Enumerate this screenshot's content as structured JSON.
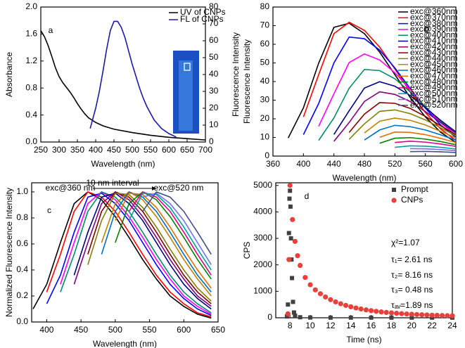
{
  "chart_data": [
    {
      "type": "line",
      "label": "a",
      "xlabel": "Wavelength (nm)",
      "ylabel": "Absorbance",
      "y2label": "Fluorescence Intensity",
      "xlim": [
        250,
        700
      ],
      "xticks": [
        250,
        300,
        350,
        400,
        450,
        500,
        550,
        600,
        650,
        700
      ],
      "ylim": [
        0,
        2
      ],
      "yticks": [
        {
          "value": 0,
          "label": "0.0"
        },
        0.4,
        0.8,
        1.2,
        1.6,
        {
          "value": 2,
          "label": "2.0"
        }
      ],
      "y2lim": [
        0,
        80
      ],
      "y2ticks": [
        0,
        10,
        20,
        30,
        40,
        50,
        60,
        70,
        80
      ],
      "legend": "upper right",
      "series": [
        {
          "name": "UV of CNPs",
          "color": "#000000",
          "x": [
            250,
            260,
            270,
            280,
            290,
            300,
            310,
            320,
            330,
            340,
            350,
            360,
            370,
            380,
            400,
            420,
            450,
            500,
            550,
            600,
            650,
            700
          ],
          "values": [
            1.65,
            1.56,
            1.43,
            1.27,
            1.1,
            0.97,
            0.88,
            0.81,
            0.74,
            0.66,
            0.57,
            0.49,
            0.42,
            0.36,
            0.29,
            0.24,
            0.19,
            0.14,
            0.1,
            0.07,
            0.05,
            0.03
          ]
        },
        {
          "name": "FL of CNPs",
          "color": "#1a1aa6",
          "axis": "y2",
          "x": [
            385,
            390,
            400,
            410,
            420,
            430,
            440,
            450,
            460,
            470,
            480,
            490,
            500,
            510,
            520,
            530,
            540,
            560,
            580,
            600,
            620
          ],
          "values": [
            8,
            12,
            20,
            30,
            42,
            55,
            66,
            71.5,
            71.5,
            68,
            62,
            54,
            46,
            39,
            32,
            26,
            21,
            13,
            8,
            5,
            3
          ]
        }
      ]
    },
    {
      "type": "line",
      "label": "b",
      "xlabel": "Wavelength (nm)",
      "ylabel": "Fluorescence Intensity",
      "xlim": [
        360,
        600
      ],
      "xticks": [
        360,
        400,
        440,
        480,
        520,
        560,
        600
      ],
      "ylim": [
        0,
        80
      ],
      "yticks": [
        0,
        10,
        20,
        30,
        40,
        50,
        60,
        70,
        80
      ],
      "legend": "upper right",
      "x": [
        380,
        400,
        420,
        440,
        460,
        480,
        500,
        520,
        540,
        560,
        580,
        600
      ],
      "series": [
        {
          "name": "exc@360nm",
          "color": "#000000",
          "values": [
            9.7,
            25.9,
            49.9,
            69.1,
            71.3,
            65.7,
            55.8,
            43.7,
            31.5,
            21.0,
            12.8,
            7.3
          ]
        },
        {
          "name": "exc@370nm",
          "color": "#ff0000",
          "values": [
            null,
            21.0,
            43.7,
            65.7,
            71.8,
            67.5,
            58.5,
            46.8,
            34.5,
            23.4,
            14.6,
            8.4
          ]
        },
        {
          "name": "exc@380nm",
          "color": "#0000ff",
          "values": [
            null,
            11.5,
            28.2,
            50.0,
            63.9,
            63.0,
            56.9,
            47.3,
            36.3,
            25.7,
            16.7,
            10.1
          ]
        },
        {
          "name": "exc@390nm",
          "color": "#ff00ff",
          "values": [
            null,
            null,
            16.0,
            33.4,
            50.2,
            54.8,
            51.6,
            44.7,
            35.8,
            26.3,
            17.9,
            11.2
          ]
        },
        {
          "name": "exc@400nm",
          "color": "#008c6e",
          "values": [
            null,
            null,
            8.4,
            20.5,
            36.4,
            46.5,
            45.9,
            41.5,
            34.5,
            26.5,
            18.7,
            12.2
          ]
        },
        {
          "name": "exc@410nm",
          "color": "#000080",
          "values": [
            null,
            null,
            null,
            11.6,
            24.3,
            36.5,
            39.9,
            37.5,
            32.5,
            26.0,
            19.2,
            13.0
          ]
        },
        {
          "name": "exc@420nm",
          "color": "#800080",
          "values": [
            null,
            null,
            null,
            7.9,
            18.0,
            29.3,
            34.5,
            33.1,
            29.3,
            23.9,
            18.0,
            12.4
          ]
        },
        {
          "name": "exc@430nm",
          "color": "#800000",
          "values": [
            null,
            null,
            null,
            null,
            12.7,
            22.5,
            28.7,
            28.3,
            25.6,
            21.3,
            16.3,
            11.5
          ]
        },
        {
          "name": "exc@440nm",
          "color": "#808000",
          "values": [
            null,
            null,
            null,
            null,
            9.0,
            17.3,
            24.0,
            24.8,
            22.8,
            19.4,
            15.2,
            10.9
          ]
        },
        {
          "name": "exc@450nm",
          "color": "#c08000",
          "values": [
            null,
            null,
            null,
            null,
            null,
            12.4,
            18.7,
            20.4,
            19.2,
            16.7,
            13.3,
            9.8
          ]
        },
        {
          "name": "exc@460nm",
          "color": "#0070c0",
          "values": [
            null,
            null,
            null,
            null,
            null,
            8.6,
            14.0,
            16.5,
            15.8,
            14.0,
            11.4,
            8.6
          ]
        },
        {
          "name": "exc@470nm",
          "color": "#e07000",
          "values": [
            null,
            null,
            null,
            null,
            null,
            null,
            10.1,
            12.9,
            12.7,
            11.5,
            9.5,
            7.3
          ]
        },
        {
          "name": "exc@480nm",
          "color": "#008000",
          "values": [
            null,
            null,
            null,
            null,
            null,
            null,
            6.9,
            9.6,
            9.9,
            9.1,
            7.8,
            6.1
          ]
        },
        {
          "name": "exc@490nm",
          "color": "#e0008a",
          "values": [
            null,
            null,
            null,
            null,
            null,
            null,
            null,
            7.3,
            8.0,
            7.5,
            6.5,
            5.2
          ]
        },
        {
          "name": "exc@500nm",
          "color": "#00a0a0",
          "values": [
            null,
            null,
            null,
            null,
            null,
            null,
            null,
            4.7,
            5.5,
            5.3,
            4.7,
            3.8
          ]
        },
        {
          "name": "exc@510nm",
          "color": "#7070ff",
          "values": [
            null,
            null,
            null,
            null,
            null,
            null,
            null,
            null,
            4.0,
            3.9,
            3.5,
            2.9
          ]
        },
        {
          "name": "exc@520nm",
          "color": "#405080",
          "values": [
            null,
            null,
            null,
            null,
            null,
            null,
            null,
            null,
            2.4,
            2.5,
            2.3,
            1.9
          ]
        }
      ]
    },
    {
      "type": "line",
      "label": "c",
      "xlabel": "Wavelength (nm)",
      "ylabel": "Normalized Fluorescence Intensity",
      "xlim": [
        378,
        650
      ],
      "xticks": [
        400,
        450,
        500,
        550,
        600,
        650
      ],
      "ylim": [
        0,
        1.07
      ],
      "yticks": [
        {
          "value": 0,
          "label": "0.0"
        },
        0.2,
        0.4,
        0.6,
        0.8,
        {
          "value": 1,
          "label": "1.0"
        }
      ],
      "annotations": [
        "exc@360 nm",
        "10 nm interval",
        "exc@520 nm"
      ],
      "x": [
        380,
        400,
        420,
        440,
        460,
        480,
        500,
        520,
        540,
        560,
        580,
        600,
        620,
        640
      ],
      "series": [
        {
          "color": "#000000",
          "values": [
            0.1,
            0.29,
            0.61,
            0.91,
            1.0,
            0.94,
            0.81,
            0.65,
            0.48,
            0.33,
            0.2,
            0.12,
            0.06,
            0.03
          ]
        },
        {
          "color": "#ff0000",
          "values": [
            null,
            0.23,
            0.52,
            0.85,
            1.0,
            0.96,
            0.85,
            0.69,
            0.52,
            0.36,
            0.23,
            0.14,
            0.07,
            0.04
          ]
        },
        {
          "color": "#0000ff",
          "values": [
            null,
            0.14,
            0.36,
            0.69,
            0.96,
            0.99,
            0.91,
            0.78,
            0.61,
            0.44,
            0.29,
            0.18,
            0.1,
            0.05
          ]
        },
        {
          "color": "#ff00ff",
          "values": [
            null,
            null,
            0.29,
            0.61,
            0.91,
            1.0,
            0.94,
            0.81,
            0.65,
            0.48,
            0.33,
            0.2,
            0.12,
            0.06
          ]
        },
        {
          "color": "#008c6e",
          "values": [
            null,
            null,
            0.23,
            0.52,
            0.85,
            1.0,
            0.96,
            0.85,
            0.69,
            0.52,
            0.36,
            0.23,
            0.14,
            0.07
          ]
        },
        {
          "color": "#000080",
          "values": [
            null,
            null,
            null,
            0.36,
            0.69,
            0.96,
            0.99,
            0.91,
            0.78,
            0.61,
            0.44,
            0.29,
            0.18,
            0.1
          ]
        },
        {
          "color": "#800080",
          "values": [
            null,
            null,
            null,
            0.29,
            0.61,
            0.91,
            1.0,
            0.94,
            0.81,
            0.65,
            0.48,
            0.33,
            0.2,
            0.12
          ]
        },
        {
          "color": "#800000",
          "values": [
            null,
            null,
            null,
            null,
            0.52,
            0.85,
            1.0,
            0.96,
            0.85,
            0.69,
            0.52,
            0.36,
            0.23,
            0.14
          ]
        },
        {
          "color": "#808000",
          "values": [
            null,
            null,
            null,
            null,
            0.44,
            0.78,
            0.99,
            0.98,
            0.88,
            0.73,
            0.56,
            0.4,
            0.26,
            0.16
          ]
        },
        {
          "color": "#c08000",
          "values": [
            null,
            null,
            null,
            null,
            null,
            0.61,
            0.91,
            1.0,
            0.94,
            0.81,
            0.65,
            0.48,
            0.33,
            0.2
          ]
        },
        {
          "color": "#0070c0",
          "values": [
            null,
            null,
            null,
            null,
            null,
            0.52,
            0.85,
            1.0,
            0.96,
            0.85,
            0.69,
            0.52,
            0.36,
            0.23
          ]
        },
        {
          "color": "#e07000",
          "values": [
            null,
            null,
            null,
            null,
            null,
            null,
            0.78,
            0.99,
            0.98,
            0.88,
            0.73,
            0.56,
            0.4,
            0.26
          ]
        },
        {
          "color": "#008000",
          "values": [
            null,
            null,
            null,
            null,
            null,
            null,
            0.61,
            0.91,
            1.0,
            0.94,
            0.81,
            0.65,
            0.48,
            0.33
          ]
        },
        {
          "color": "#e0008a",
          "values": [
            null,
            null,
            null,
            null,
            null,
            null,
            null,
            0.85,
            1.0,
            0.96,
            0.85,
            0.69,
            0.52,
            0.36
          ]
        },
        {
          "color": "#00a0a0",
          "values": [
            null,
            null,
            null,
            null,
            null,
            null,
            null,
            0.78,
            0.99,
            0.98,
            0.88,
            0.73,
            0.56,
            0.4
          ]
        },
        {
          "color": "#7070ff",
          "values": [
            null,
            null,
            null,
            null,
            null,
            null,
            null,
            null,
            0.96,
            0.99,
            0.91,
            0.78,
            0.61,
            0.44
          ]
        },
        {
          "color": "#405080",
          "values": [
            null,
            null,
            null,
            null,
            null,
            null,
            null,
            null,
            0.85,
            1.0,
            0.96,
            0.85,
            0.69,
            0.52
          ]
        }
      ]
    },
    {
      "type": "scatter",
      "label": "d",
      "xlabel": "Time (ns)",
      "ylabel": "CPS",
      "xlim": [
        6.6,
        24
      ],
      "xticks": [
        8,
        10,
        12,
        14,
        16,
        18,
        20,
        22,
        24
      ],
      "ylim": [
        0,
        5100
      ],
      "yticks": [
        0,
        1000,
        2000,
        3000,
        4000,
        5000
      ],
      "legend": "upper right",
      "annotations": [
        "χ²=1.07",
        "τ₁= 2.61 ns",
        "τ₂= 8.16 ns",
        "τ₃= 0.48 ns",
        "τₐᵥ=1.89 ns"
      ],
      "series": [
        {
          "name": "Prompt",
          "color": "#404040",
          "marker": "square",
          "x": [
            7.7,
            7.8,
            7.9,
            7.95,
            8.0,
            8.05,
            8.1,
            8.15,
            8.2,
            8.3,
            8.4,
            8.5,
            9,
            10,
            12,
            14,
            16,
            18,
            20,
            22,
            24
          ],
          "values": [
            50,
            500,
            3200,
            4500,
            4800,
            4200,
            3000,
            2200,
            1500,
            600,
            200,
            80,
            20,
            10,
            5,
            5,
            5,
            5,
            5,
            5,
            5
          ]
        },
        {
          "name": "CNPs",
          "color": "#e8403a",
          "marker": "circle",
          "x": [
            7.8,
            7.9,
            8.0,
            8.25,
            8.5,
            8.75,
            9,
            9.5,
            10,
            10.5,
            11,
            11.5,
            12,
            12.5,
            13,
            13.5,
            14,
            14.5,
            15,
            15.5,
            16,
            16.5,
            17,
            17.5,
            18,
            18.5,
            19,
            19.5,
            20,
            20.5,
            21,
            21.5,
            22,
            22.5,
            23,
            23.5,
            24
          ],
          "values": [
            150,
            2200,
            5000,
            3710,
            2886,
            2346,
            1978,
            1522,
            1247,
            1054,
            906,
            786,
            684,
            600,
            529,
            468,
            416,
            370,
            332,
            298,
            270,
            243,
            222,
            202,
            185,
            169,
            156,
            143,
            133,
            123,
            114,
            106,
            98,
            92,
            86,
            80,
            74
          ]
        }
      ]
    }
  ]
}
